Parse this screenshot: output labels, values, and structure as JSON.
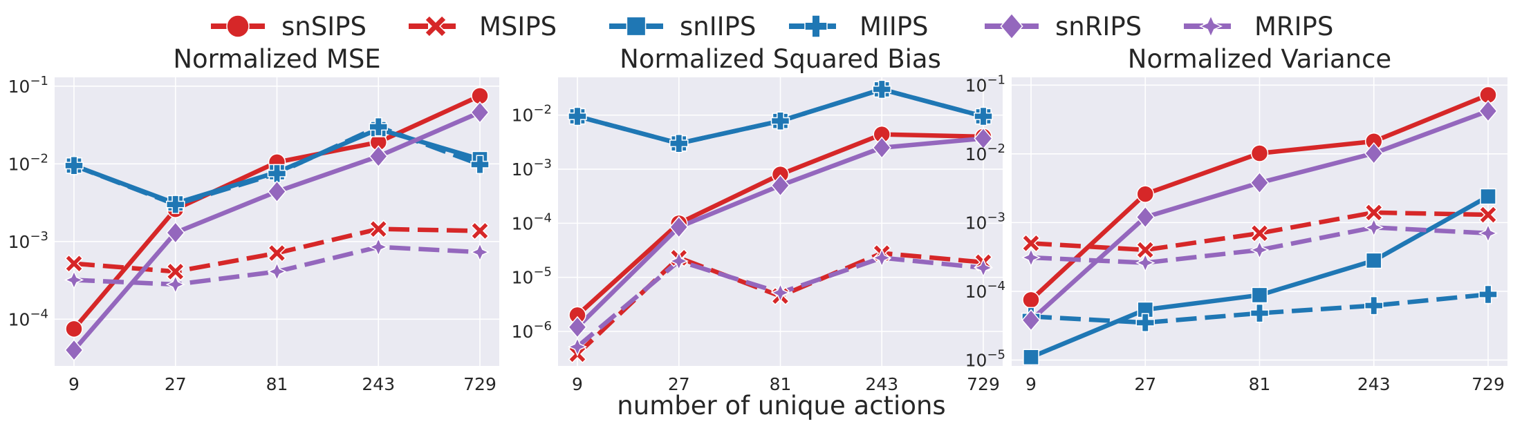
{
  "figure": {
    "xlabel": "number of unique actions"
  },
  "legend": [
    {
      "name": "snSIPS",
      "color": "#d62728",
      "marker": "circle",
      "dashed": false
    },
    {
      "name": "MSIPS",
      "color": "#d62728",
      "marker": "x",
      "dashed": true
    },
    {
      "name": "snIIPS",
      "color": "#1f77b4",
      "marker": "square",
      "dashed": false
    },
    {
      "name": "MIIPS",
      "color": "#1f77b4",
      "marker": "plus",
      "dashed": true
    },
    {
      "name": "snRIPS",
      "color": "#9467bd",
      "marker": "diamond",
      "dashed": false
    },
    {
      "name": "MRIPS",
      "color": "#9467bd",
      "marker": "star",
      "dashed": true
    }
  ],
  "chart_data": [
    {
      "type": "line",
      "title": "Normalized MSE",
      "yscale": "log",
      "ylim": [
        2.5e-05,
        0.13
      ],
      "grid": true,
      "categories": [
        "9",
        "27",
        "81",
        "243",
        "729"
      ],
      "y_tick_values": [
        0.0001,
        0.001,
        0.01,
        0.1
      ],
      "y_tick_labels": [
        {
          "base": "10",
          "exp": "−4"
        },
        {
          "base": "10",
          "exp": "−3"
        },
        {
          "base": "10",
          "exp": "−2"
        },
        {
          "base": "10",
          "exp": "−1"
        }
      ],
      "series": [
        {
          "name": "snSIPS",
          "values": [
            7.5e-05,
            0.0026,
            0.0105,
            0.019,
            0.075
          ]
        },
        {
          "name": "MSIPS",
          "values": [
            0.00052,
            0.00041,
            0.00071,
            0.00145,
            0.00137
          ]
        },
        {
          "name": "snIIPS",
          "values": [
            0.0095,
            0.0031,
            0.0078,
            0.028,
            0.0115
          ]
        },
        {
          "name": "MIIPS",
          "values": [
            0.0095,
            0.003,
            0.0075,
            0.03,
            0.0098
          ]
        },
        {
          "name": "snRIPS",
          "values": [
            4e-05,
            0.0013,
            0.0044,
            0.0125,
            0.046
          ]
        },
        {
          "name": "MRIPS",
          "values": [
            0.00032,
            0.00028,
            0.00041,
            0.00085,
            0.00073
          ]
        }
      ]
    },
    {
      "type": "line",
      "title": "Normalized Squared Bias",
      "yscale": "log",
      "ylim": [
        2.3e-07,
        0.05
      ],
      "grid": true,
      "categories": [
        "9",
        "27",
        "81",
        "243",
        "729"
      ],
      "y_tick_values": [
        1e-06,
        1e-05,
        0.0001,
        0.001,
        0.01
      ],
      "y_tick_labels": [
        {
          "base": "10",
          "exp": "−6"
        },
        {
          "base": "10",
          "exp": "−5"
        },
        {
          "base": "10",
          "exp": "−4"
        },
        {
          "base": "10",
          "exp": "−3"
        },
        {
          "base": "10",
          "exp": "−2"
        }
      ],
      "series": [
        {
          "name": "snSIPS",
          "values": [
            2e-06,
            0.0001,
            0.0008,
            0.0044,
            0.004
          ]
        },
        {
          "name": "MSIPS",
          "values": [
            3.8e-07,
            2.3e-05,
            4.5e-06,
            2.8e-05,
            1.9e-05
          ]
        },
        {
          "name": "snIIPS",
          "values": [
            0.0095,
            0.003,
            0.0078,
            0.03,
            0.0095
          ]
        },
        {
          "name": "MIIPS",
          "values": [
            0.0095,
            0.003,
            0.0078,
            0.03,
            0.0095
          ]
        },
        {
          "name": "snRIPS",
          "values": [
            1.2e-06,
            8.5e-05,
            0.0005,
            0.0025,
            0.0037
          ]
        },
        {
          "name": "MRIPS",
          "values": [
            5.2e-07,
            2e-05,
            5.2e-06,
            2.3e-05,
            1.5e-05
          ]
        }
      ]
    },
    {
      "type": "line",
      "title": "Normalized Variance",
      "yscale": "log",
      "ylim": [
        8.2e-06,
        0.13
      ],
      "grid": true,
      "categories": [
        "9",
        "27",
        "81",
        "243",
        "729"
      ],
      "y_tick_values": [
        1e-05,
        0.0001,
        0.001,
        0.01,
        0.1
      ],
      "y_tick_labels": [
        {
          "base": "10",
          "exp": "−5"
        },
        {
          "base": "10",
          "exp": "−4"
        },
        {
          "base": "10",
          "exp": "−3"
        },
        {
          "base": "10",
          "exp": "−2"
        },
        {
          "base": "10",
          "exp": "−1"
        }
      ],
      "series": [
        {
          "name": "snSIPS",
          "values": [
            7.5e-05,
            0.0026,
            0.0102,
            0.0152,
            0.072
          ]
        },
        {
          "name": "MSIPS",
          "values": [
            0.0005,
            0.0004,
            0.0007,
            0.0014,
            0.0013
          ]
        },
        {
          "name": "snIIPS",
          "values": [
            1.1e-05,
            5.4e-05,
            8.8e-05,
            0.00028,
            0.0024
          ]
        },
        {
          "name": "MIIPS",
          "values": [
            4.3e-05,
            3.5e-05,
            4.8e-05,
            6.2e-05,
            9e-05
          ]
        },
        {
          "name": "snRIPS",
          "values": [
            3.8e-05,
            0.0012,
            0.0038,
            0.0102,
            0.042
          ]
        },
        {
          "name": "MRIPS",
          "values": [
            0.00031,
            0.00026,
            0.0004,
            0.00085,
            0.0007
          ]
        }
      ]
    }
  ]
}
